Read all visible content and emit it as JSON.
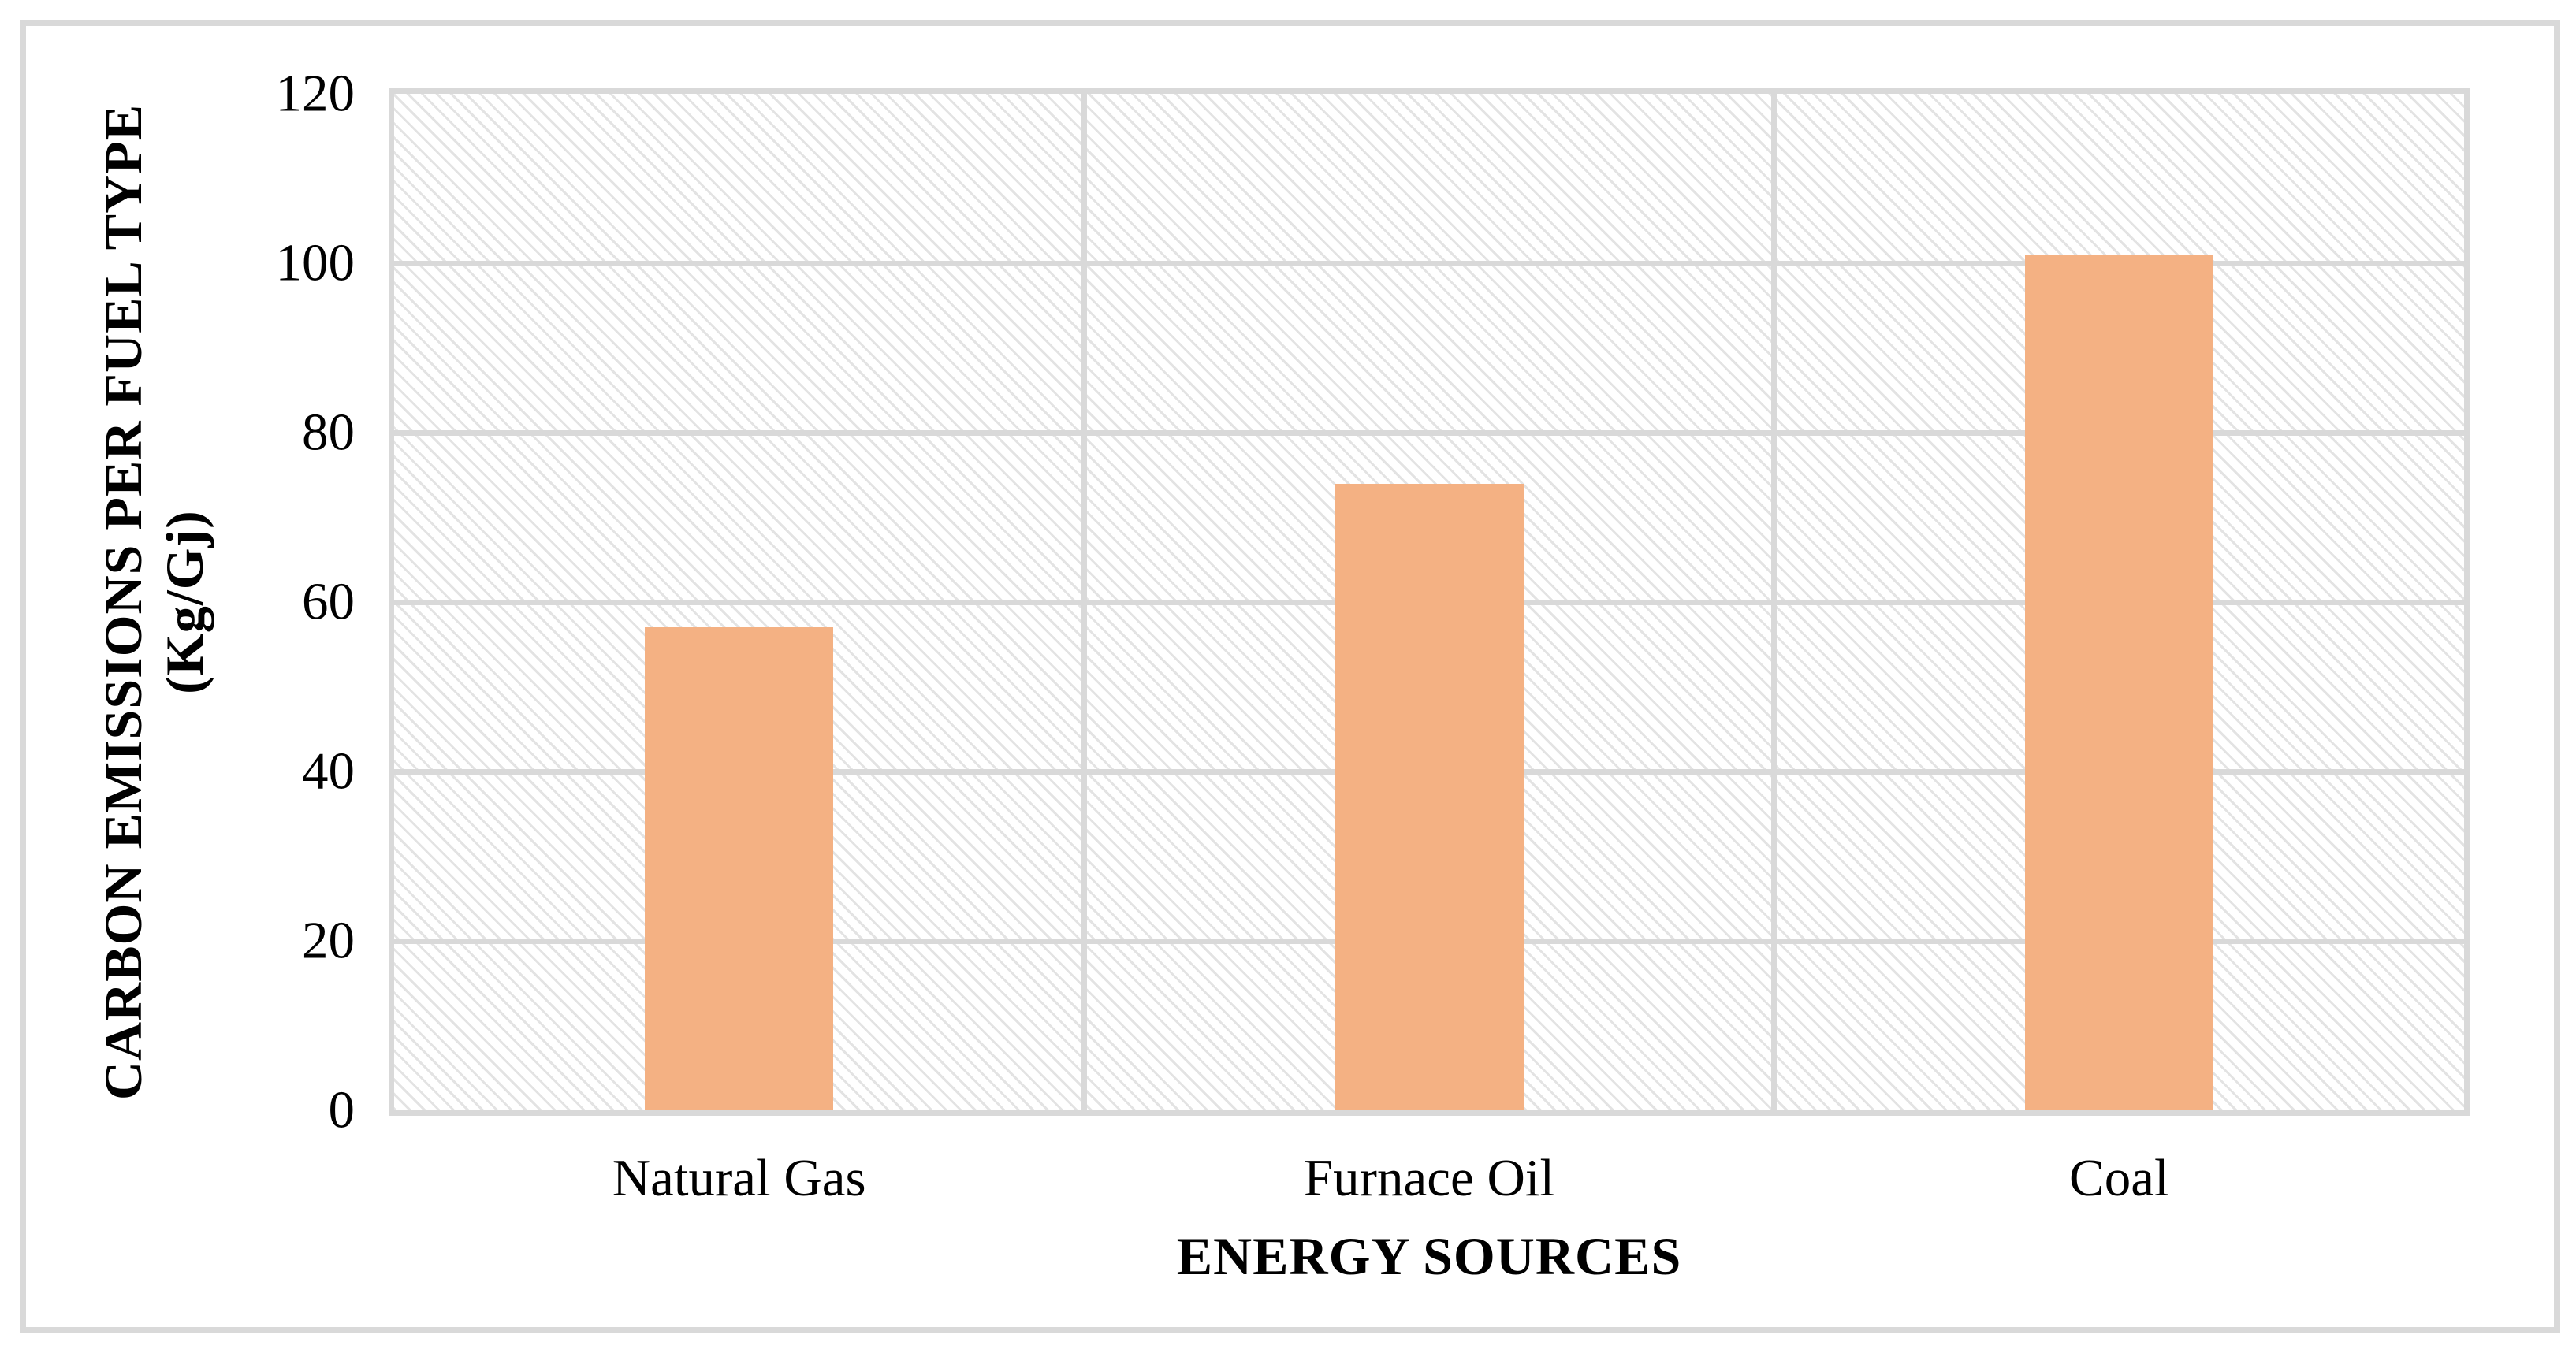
{
  "chart_data": {
    "type": "bar",
    "categories": [
      "Natural Gas",
      "Furnace Oil",
      "Coal"
    ],
    "values": [
      57,
      74,
      101
    ],
    "title": "",
    "xlabel": "ENERGY SOURCES",
    "ylabel": "CARBON EMISSIONS PER FUEL TYPE (Kg/Gj)",
    "ylabel_line1": "CARBON EMISSIONS PER FUEL TYPE",
    "ylabel_line2": "(Kg/Gj)",
    "ylim": [
      0,
      120
    ],
    "yticks": [
      0,
      20,
      40,
      60,
      80,
      100,
      120
    ],
    "grid": "horizontal gridlines every 20 units plus vertical category separators",
    "legend": "none",
    "plot_background": "light diagonal hatch pattern",
    "colors": {
      "bar_fill": "#F4B183",
      "gridline": "#D9D9D9",
      "chart_border": "#D9D9D9",
      "hatch_stripe": "#E3E3E3",
      "text": "#000000"
    }
  }
}
